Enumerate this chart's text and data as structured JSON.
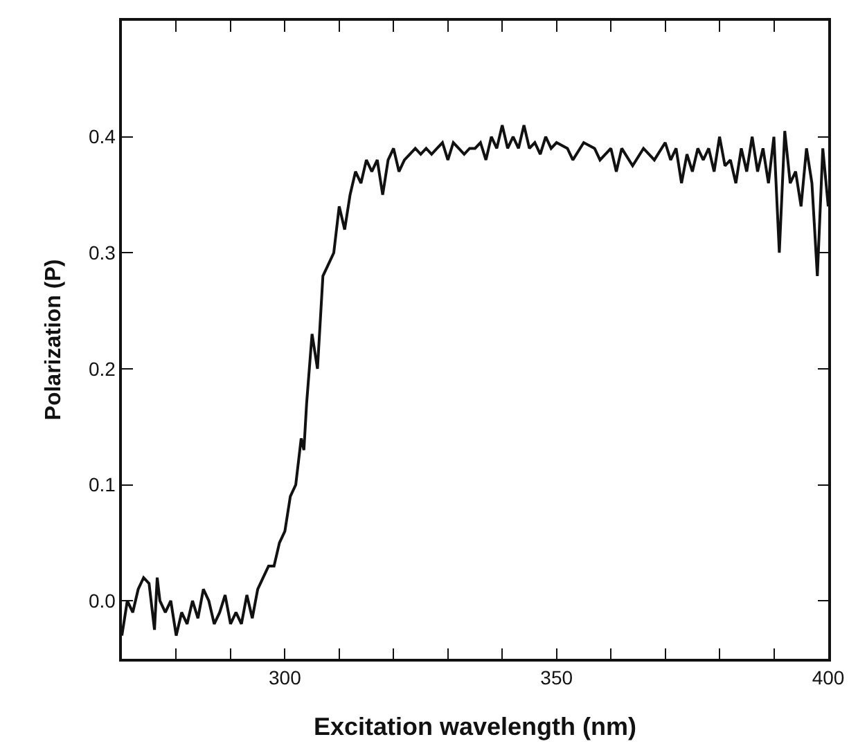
{
  "chart_data": {
    "type": "line",
    "xlabel": "Excitation wavelength (nm)",
    "ylabel": "Polarization (P)",
    "xlim": [
      270,
      400
    ],
    "ylim": [
      -0.05,
      0.5
    ],
    "xticks": [
      {
        "value": 280,
        "label": null
      },
      {
        "value": 290,
        "label": null
      },
      300,
      {
        "value": 310,
        "label": null
      },
      {
        "value": 320,
        "label": null
      },
      {
        "value": 330,
        "label": null
      },
      {
        "value": 340,
        "label": null
      },
      350,
      {
        "value": 360,
        "label": null
      },
      {
        "value": 370,
        "label": null
      },
      {
        "value": 380,
        "label": null
      },
      {
        "value": 390,
        "label": null
      },
      400
    ],
    "yticks": [
      {
        "value": 0,
        "label": "0.0"
      },
      0.1,
      0.2,
      0.3,
      0.4
    ],
    "grid": false,
    "marker": "none",
    "line_style": "solid",
    "series": [
      {
        "color": "#111111",
        "x": [
          270,
          271,
          272,
          273,
          274,
          275,
          276,
          276.5,
          277,
          278,
          279,
          280,
          281,
          282,
          283,
          284,
          285,
          286,
          287,
          288,
          289,
          290,
          291,
          292,
          293,
          294,
          295,
          296,
          297,
          298,
          299,
          300,
          301,
          302,
          303,
          303.5,
          304,
          305,
          306,
          307,
          308,
          309,
          310,
          311,
          312,
          313,
          314,
          315,
          316,
          317,
          318,
          319,
          320,
          321,
          322,
          323,
          324,
          325,
          326,
          327,
          328,
          329,
          330,
          331,
          332,
          333,
          334,
          335,
          336,
          337,
          338,
          339,
          340,
          341,
          342,
          343,
          344,
          345,
          346,
          347,
          348,
          349,
          350,
          352,
          353,
          355,
          357,
          358,
          360,
          361,
          362,
          364,
          366,
          368,
          370,
          371,
          372,
          373,
          374,
          375,
          376,
          377,
          378,
          379,
          380,
          381,
          382,
          383,
          384,
          385,
          386,
          387,
          388,
          389,
          390,
          391,
          392,
          393,
          394,
          395,
          396,
          397,
          398,
          399,
          400
        ],
        "values": [
          -0.03,
          0.0,
          -0.01,
          0.01,
          0.02,
          0.015,
          -0.025,
          0.02,
          0.0,
          -0.01,
          0.0,
          -0.03,
          -0.01,
          -0.02,
          0.0,
          -0.015,
          0.01,
          0.0,
          -0.02,
          -0.01,
          0.005,
          -0.02,
          -0.01,
          -0.02,
          0.005,
          -0.015,
          0.01,
          0.02,
          0.03,
          0.03,
          0.05,
          0.06,
          0.09,
          0.1,
          0.14,
          0.13,
          0.17,
          0.23,
          0.2,
          0.28,
          0.29,
          0.3,
          0.34,
          0.32,
          0.35,
          0.37,
          0.36,
          0.38,
          0.37,
          0.38,
          0.35,
          0.38,
          0.39,
          0.37,
          0.38,
          0.385,
          0.39,
          0.385,
          0.39,
          0.385,
          0.39,
          0.395,
          0.38,
          0.395,
          0.39,
          0.385,
          0.39,
          0.39,
          0.395,
          0.38,
          0.4,
          0.39,
          0.41,
          0.39,
          0.4,
          0.39,
          0.41,
          0.39,
          0.395,
          0.385,
          0.4,
          0.39,
          0.395,
          0.39,
          0.38,
          0.395,
          0.39,
          0.38,
          0.39,
          0.37,
          0.39,
          0.375,
          0.39,
          0.38,
          0.395,
          0.38,
          0.39,
          0.36,
          0.385,
          0.37,
          0.39,
          0.38,
          0.39,
          0.37,
          0.4,
          0.375,
          0.38,
          0.36,
          0.39,
          0.37,
          0.4,
          0.37,
          0.39,
          0.36,
          0.4,
          0.3,
          0.405,
          0.36,
          0.37,
          0.34,
          0.39,
          0.36,
          0.28,
          0.39,
          0.34
        ]
      }
    ]
  }
}
